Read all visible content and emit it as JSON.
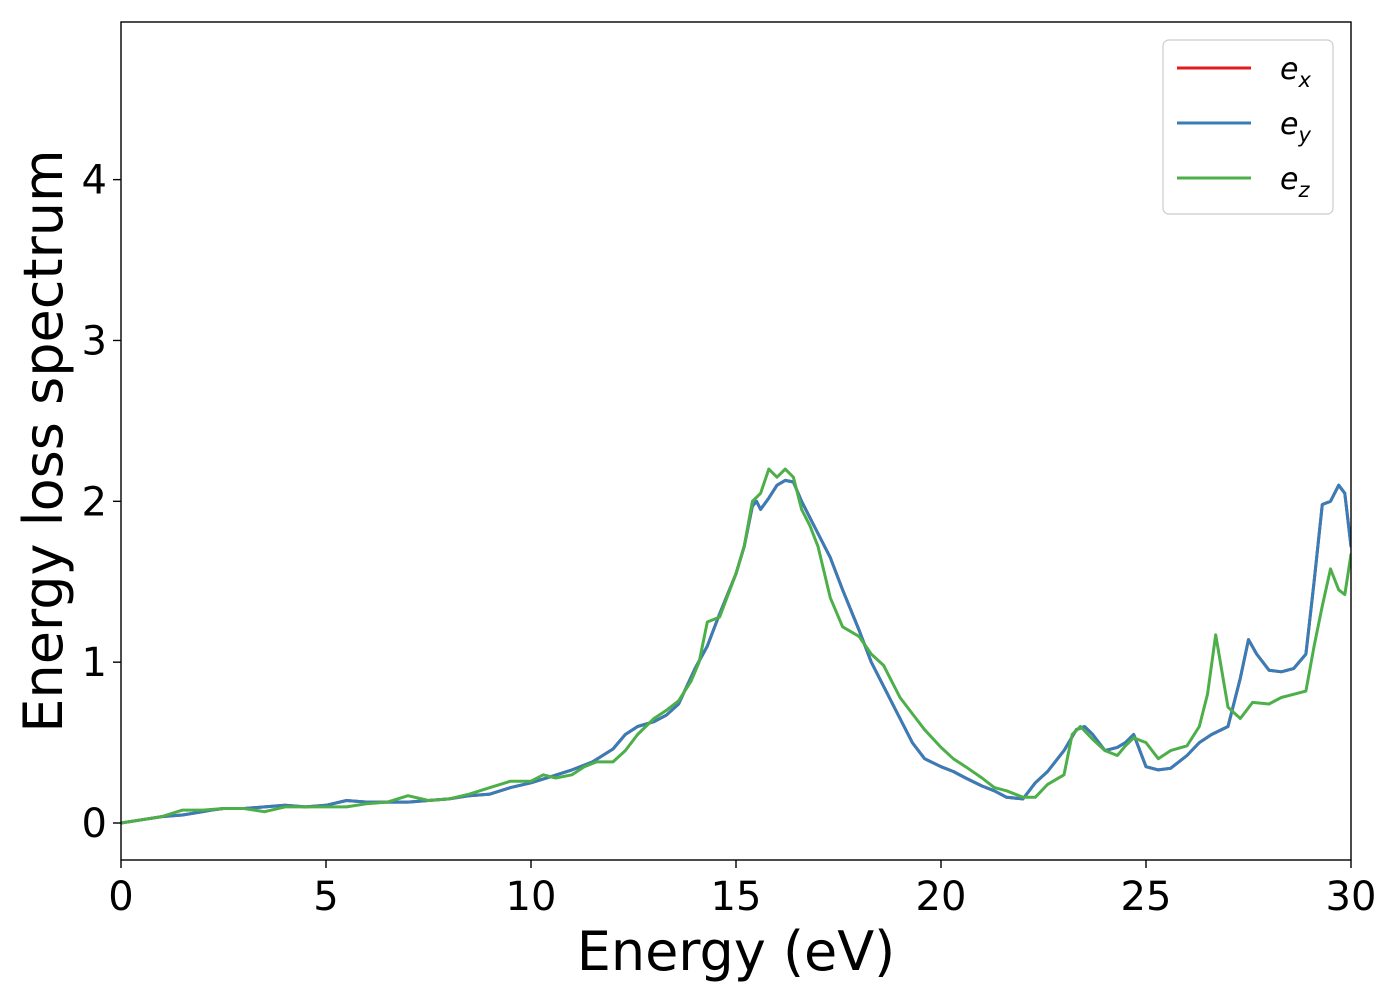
{
  "chart_data": {
    "type": "line",
    "title": "",
    "xlabel": "Energy (eV)",
    "ylabel": "Energy loss spectrum",
    "xlim": [
      0,
      30
    ],
    "ylim": [
      -0.23,
      4.98
    ],
    "xticks": [
      0,
      5,
      10,
      15,
      20,
      25,
      30
    ],
    "yticks": [
      0,
      1,
      2,
      3,
      4
    ],
    "grid": false,
    "legend_position": "top-right",
    "series": [
      {
        "name": "e_x",
        "label_base": "e",
        "label_sub": "x",
        "color": "#e41a1c",
        "x": [
          0,
          0.5,
          1,
          1.5,
          2,
          2.2,
          2.5,
          3,
          3.5,
          4,
          4.5,
          5,
          5.5,
          6,
          6.5,
          7,
          7.5,
          8,
          8.5,
          9,
          9.5,
          10,
          10.5,
          11,
          11.5,
          12,
          12.3,
          12.6,
          13,
          13.3,
          13.6,
          14,
          14.3,
          14.6,
          15,
          15.2,
          15.4,
          15.5,
          15.6,
          15.8,
          16,
          16.2,
          16.4,
          16.6,
          16.8,
          17,
          17.3,
          17.6,
          18,
          18.3,
          18.6,
          19,
          19.3,
          19.6,
          20,
          20.3,
          20.6,
          21,
          21.3,
          21.6,
          22,
          22.3,
          22.6,
          23,
          23.3,
          23.5,
          23.7,
          24,
          24.3,
          24.5,
          24.7,
          25,
          25.3,
          25.6,
          26,
          26.3,
          26.6,
          27,
          27.3,
          27.5,
          27.7,
          28,
          28.3,
          28.6,
          28.9,
          29.1,
          29.3,
          29.5,
          29.7,
          29.85,
          30
        ],
        "values": [
          0,
          0.02,
          0.04,
          0.05,
          0.07,
          0.08,
          0.09,
          0.09,
          0.1,
          0.11,
          0.1,
          0.11,
          0.14,
          0.13,
          0.13,
          0.13,
          0.14,
          0.15,
          0.17,
          0.18,
          0.22,
          0.25,
          0.29,
          0.33,
          0.38,
          0.46,
          0.55,
          0.6,
          0.63,
          0.67,
          0.74,
          0.96,
          1.1,
          1.3,
          1.55,
          1.72,
          1.97,
          2.0,
          1.95,
          2.02,
          2.1,
          2.13,
          2.12,
          2.0,
          1.9,
          1.8,
          1.65,
          1.45,
          1.2,
          1.0,
          0.85,
          0.65,
          0.5,
          0.4,
          0.35,
          0.32,
          0.28,
          0.23,
          0.2,
          0.16,
          0.15,
          0.25,
          0.32,
          0.45,
          0.58,
          0.6,
          0.55,
          0.45,
          0.47,
          0.5,
          0.55,
          0.35,
          0.33,
          0.34,
          0.42,
          0.5,
          0.55,
          0.6,
          0.9,
          1.14,
          1.05,
          0.95,
          0.94,
          0.96,
          1.05,
          1.5,
          1.98,
          2.0,
          2.1,
          2.05,
          1.72
        ]
      },
      {
        "name": "e_y",
        "label_base": "e",
        "label_sub": "y",
        "color": "#377eb8",
        "x": [
          0,
          0.5,
          1,
          1.5,
          2,
          2.2,
          2.5,
          3,
          3.5,
          4,
          4.5,
          5,
          5.5,
          6,
          6.5,
          7,
          7.5,
          8,
          8.5,
          9,
          9.5,
          10,
          10.5,
          11,
          11.5,
          12,
          12.3,
          12.6,
          13,
          13.3,
          13.6,
          14,
          14.3,
          14.6,
          15,
          15.2,
          15.4,
          15.5,
          15.6,
          15.8,
          16,
          16.2,
          16.4,
          16.6,
          16.8,
          17,
          17.3,
          17.6,
          18,
          18.3,
          18.6,
          19,
          19.3,
          19.6,
          20,
          20.3,
          20.6,
          21,
          21.3,
          21.6,
          22,
          22.3,
          22.6,
          23,
          23.3,
          23.5,
          23.7,
          24,
          24.3,
          24.5,
          24.7,
          25,
          25.3,
          25.6,
          26,
          26.3,
          26.6,
          27,
          27.3,
          27.5,
          27.7,
          28,
          28.3,
          28.6,
          28.9,
          29.1,
          29.3,
          29.5,
          29.7,
          29.85,
          30
        ],
        "values": [
          0,
          0.02,
          0.04,
          0.05,
          0.07,
          0.08,
          0.09,
          0.09,
          0.1,
          0.11,
          0.1,
          0.11,
          0.14,
          0.13,
          0.13,
          0.13,
          0.14,
          0.15,
          0.17,
          0.18,
          0.22,
          0.25,
          0.29,
          0.33,
          0.38,
          0.46,
          0.55,
          0.6,
          0.63,
          0.67,
          0.74,
          0.96,
          1.1,
          1.3,
          1.55,
          1.72,
          1.97,
          2.0,
          1.95,
          2.02,
          2.1,
          2.13,
          2.12,
          2.0,
          1.9,
          1.8,
          1.65,
          1.45,
          1.2,
          1.0,
          0.85,
          0.65,
          0.5,
          0.4,
          0.35,
          0.32,
          0.28,
          0.23,
          0.2,
          0.16,
          0.15,
          0.25,
          0.32,
          0.45,
          0.58,
          0.6,
          0.55,
          0.45,
          0.47,
          0.5,
          0.55,
          0.35,
          0.33,
          0.34,
          0.42,
          0.5,
          0.55,
          0.6,
          0.9,
          1.14,
          1.05,
          0.95,
          0.94,
          0.96,
          1.05,
          1.5,
          1.98,
          2.0,
          2.1,
          2.05,
          1.72
        ]
      },
      {
        "name": "e_z",
        "label_base": "e",
        "label_sub": "z",
        "color": "#4daf4a",
        "x": [
          0,
          0.5,
          1,
          1.5,
          2,
          2.5,
          3,
          3.5,
          4,
          4.5,
          5,
          5.5,
          6,
          6.5,
          7,
          7.5,
          8,
          8.5,
          9,
          9.5,
          10,
          10.3,
          10.6,
          11,
          11.3,
          11.6,
          12,
          12.3,
          12.6,
          13,
          13.3,
          13.6,
          13.9,
          14.1,
          14.3,
          14.6,
          15,
          15.2,
          15.4,
          15.6,
          15.8,
          16,
          16.2,
          16.4,
          16.6,
          16.8,
          17,
          17.3,
          17.6,
          18,
          18.3,
          18.6,
          19,
          19.3,
          19.6,
          20,
          20.3,
          20.6,
          21,
          21.3,
          21.6,
          22,
          22.3,
          22.6,
          23,
          23.2,
          23.4,
          23.7,
          24,
          24.3,
          24.5,
          24.7,
          25,
          25.3,
          25.6,
          26,
          26.3,
          26.5,
          26.7,
          27,
          27.3,
          27.6,
          28,
          28.3,
          28.6,
          28.9,
          29.1,
          29.3,
          29.5,
          29.7,
          29.85,
          30
        ],
        "values": [
          0,
          0.02,
          0.04,
          0.08,
          0.08,
          0.09,
          0.09,
          0.07,
          0.1,
          0.1,
          0.1,
          0.1,
          0.12,
          0.13,
          0.17,
          0.14,
          0.15,
          0.18,
          0.22,
          0.26,
          0.26,
          0.3,
          0.28,
          0.3,
          0.35,
          0.38,
          0.38,
          0.45,
          0.55,
          0.65,
          0.7,
          0.76,
          0.88,
          1.0,
          1.25,
          1.28,
          1.55,
          1.72,
          2.0,
          2.05,
          2.2,
          2.15,
          2.2,
          2.15,
          1.95,
          1.85,
          1.72,
          1.4,
          1.22,
          1.16,
          1.05,
          0.98,
          0.78,
          0.68,
          0.58,
          0.47,
          0.4,
          0.35,
          0.28,
          0.22,
          0.2,
          0.16,
          0.16,
          0.24,
          0.3,
          0.55,
          0.6,
          0.52,
          0.45,
          0.42,
          0.48,
          0.53,
          0.5,
          0.4,
          0.45,
          0.48,
          0.6,
          0.8,
          1.17,
          0.72,
          0.65,
          0.75,
          0.74,
          0.78,
          0.8,
          0.82,
          1.1,
          1.35,
          1.58,
          1.45,
          1.42,
          1.67
        ]
      }
    ]
  }
}
